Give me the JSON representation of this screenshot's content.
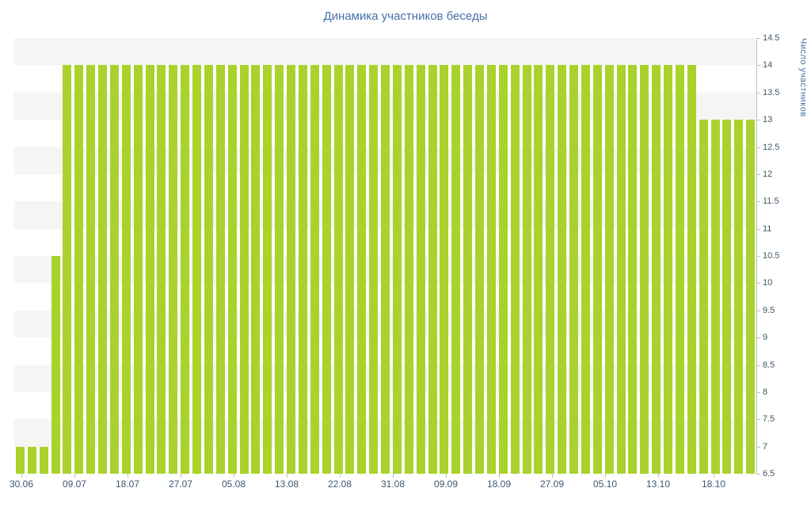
{
  "chart_data": {
    "type": "bar",
    "title": "Динамика участников беседы",
    "xlabel": "",
    "ylabel": "Число участников",
    "ylim": [
      6.5,
      14.5
    ],
    "y_tick_step": 0.5,
    "y_tick_labels": [
      "14.5",
      "14",
      "13.5",
      "13",
      "12.5",
      "12",
      "11.5",
      "11",
      "10.5",
      "10",
      "9.5",
      "9",
      "8.5",
      "8",
      "7.5",
      "7",
      "6.5"
    ],
    "x_tick_labels": [
      "30.06",
      "09.07",
      "18.07",
      "27.07",
      "05.08",
      "13.08",
      "22.08",
      "31.08",
      "09.09",
      "18.09",
      "27.09",
      "05.10",
      "13.10",
      "18.10"
    ],
    "x_range_note": "daily bars from 30.06 to late October",
    "values": [
      7,
      7,
      7,
      10.5,
      14,
      14,
      14,
      14,
      14,
      14,
      14,
      14,
      14,
      14,
      14,
      14,
      14,
      14,
      14,
      14,
      14,
      14,
      14,
      14,
      14,
      14,
      14,
      14,
      14,
      14,
      14,
      14,
      14,
      14,
      14,
      14,
      14,
      14,
      14,
      14,
      14,
      14,
      14,
      14,
      14,
      14,
      14,
      14,
      14,
      14,
      14,
      14,
      14,
      14,
      14,
      14,
      14,
      14,
      13,
      13,
      13,
      13,
      13
    ],
    "legend": "none",
    "grid": "alternating-horizontal-bands",
    "colors": {
      "bar": "#a9d32c",
      "band": "#f5f5f5",
      "band_alt": "#ffffff",
      "axis": "#c0c0c0",
      "title_text": "#4572a7",
      "tick_text": "#3e576f"
    }
  }
}
